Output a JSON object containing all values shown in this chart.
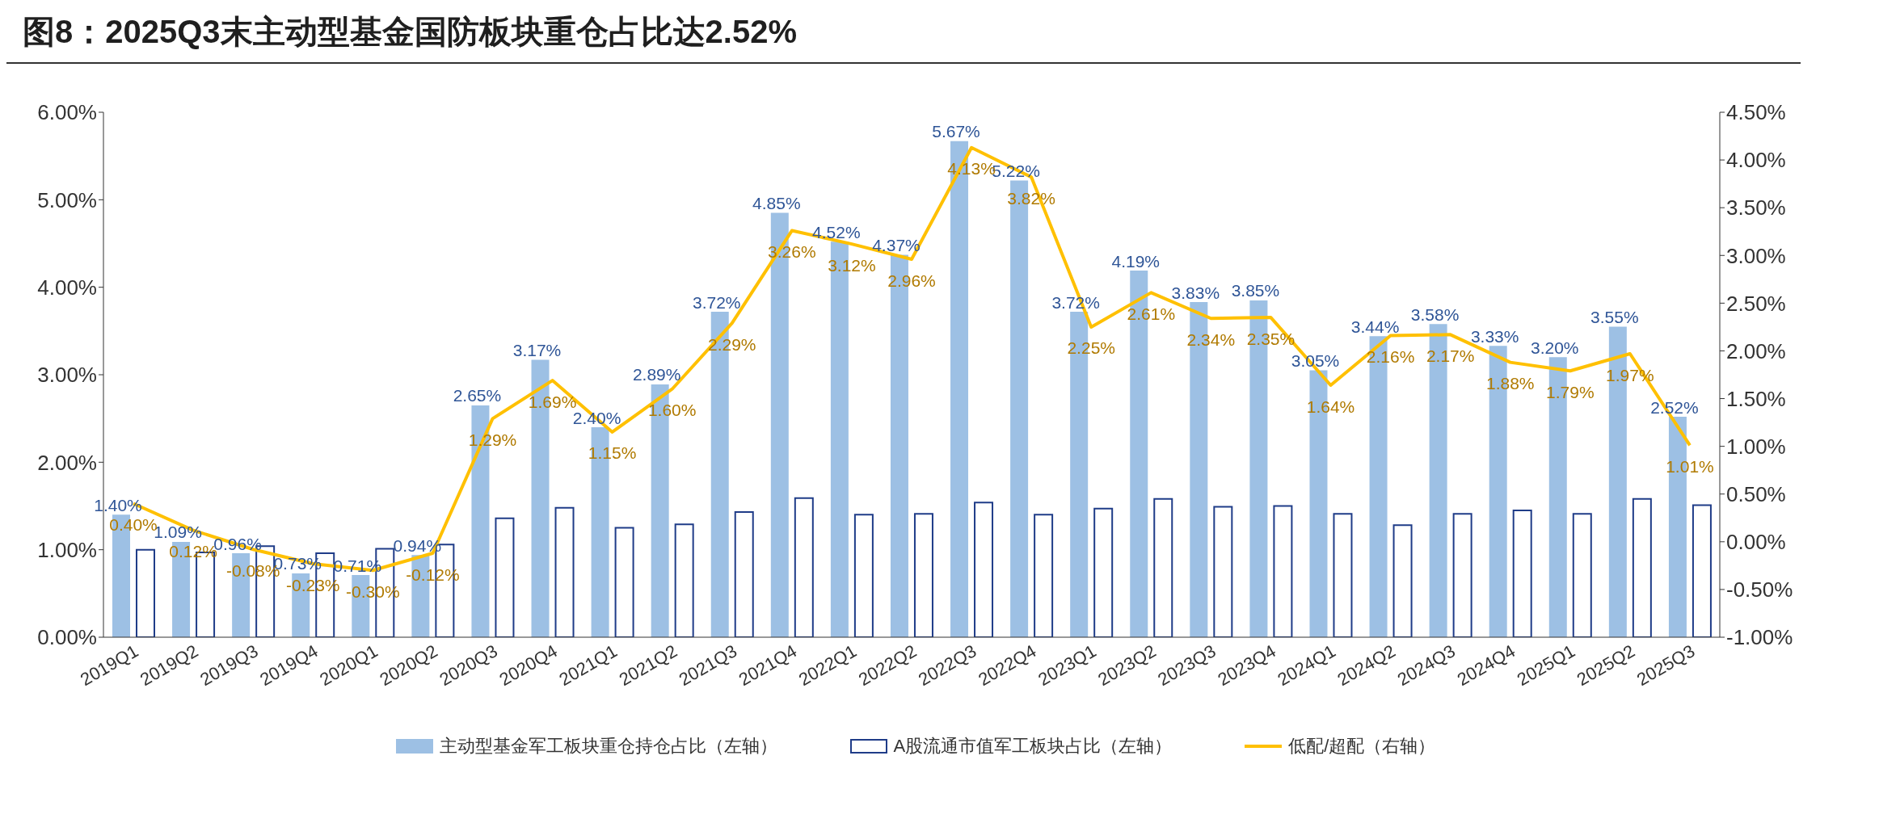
{
  "chart_data": {
    "type": "bar",
    "title": "图8：2025Q3末主动型基金国防板块重仓占比达2.52%",
    "categories": [
      "2019Q1",
      "2019Q2",
      "2019Q3",
      "2019Q4",
      "2020Q1",
      "2020Q2",
      "2020Q3",
      "2020Q4",
      "2021Q1",
      "2021Q2",
      "2021Q3",
      "2021Q4",
      "2022Q1",
      "2022Q2",
      "2022Q3",
      "2022Q4",
      "2023Q1",
      "2023Q2",
      "2023Q3",
      "2023Q4",
      "2024Q1",
      "2024Q2",
      "2024Q3",
      "2024Q4",
      "2025Q1",
      "2025Q2",
      "2025Q3"
    ],
    "series": [
      {
        "name": "主动型基金军工板块重仓持仓占比（左轴）",
        "color": "#9dc0e4",
        "values": [
          1.4,
          1.09,
          0.96,
          0.73,
          0.71,
          0.94,
          2.65,
          3.17,
          2.4,
          2.89,
          3.72,
          4.85,
          4.52,
          4.37,
          5.67,
          5.22,
          3.72,
          4.19,
          3.83,
          3.85,
          3.05,
          3.44,
          3.58,
          3.33,
          3.2,
          3.55,
          2.52
        ],
        "value_labels": [
          "1.40%",
          "1.09%",
          "0.96%",
          "0.73%",
          "0.71%",
          "0.94%",
          "2.65%",
          "3.17%",
          "2.40%",
          "2.89%",
          "3.72%",
          "4.85%",
          "4.52%",
          "4.37%",
          "5.67%",
          "5.22%",
          "3.72%",
          "4.19%",
          "3.83%",
          "3.85%",
          "3.05%",
          "3.44%",
          "3.58%",
          "3.33%",
          "3.20%",
          "3.55%",
          "2.52%"
        ]
      },
      {
        "name": "A股流通市值军工板块占比（左轴）",
        "color": "#ffffff",
        "values": [
          1.0,
          0.97,
          1.04,
          0.96,
          1.01,
          1.06,
          1.36,
          1.48,
          1.25,
          1.29,
          1.43,
          1.59,
          1.4,
          1.41,
          1.54,
          1.4,
          1.47,
          1.58,
          1.49,
          1.5,
          1.41,
          1.28,
          1.41,
          1.45,
          1.41,
          1.58,
          1.51
        ]
      },
      {
        "name": "低配/超配（右轴）",
        "type": "line",
        "axis": "y2",
        "color": "#ffc000",
        "values": [
          0.4,
          0.12,
          -0.08,
          -0.23,
          -0.3,
          -0.12,
          1.29,
          1.69,
          1.15,
          1.6,
          2.29,
          3.26,
          3.12,
          2.96,
          4.13,
          3.82,
          2.25,
          2.61,
          2.34,
          2.35,
          1.64,
          2.16,
          2.17,
          1.88,
          1.79,
          1.97,
          1.01
        ],
        "value_labels": [
          "0.40%",
          "0.12%",
          "-0.08%",
          "-0.23%",
          "-0.30%",
          "-0.12%",
          "1.29%",
          "1.69%",
          "1.15%",
          "1.60%",
          "2.29%",
          "3.26%",
          "3.12%",
          "2.96%",
          "4.13%",
          "3.82%",
          "2.25%",
          "2.61%",
          "2.34%",
          "2.35%",
          "1.64%",
          "2.16%",
          "2.17%",
          "1.88%",
          "1.79%",
          "1.97%",
          "1.01%"
        ]
      }
    ],
    "ylim": [
      0,
      6
    ],
    "yticks": [
      {
        "value": 0,
        "label": "0.00%"
      },
      {
        "value": 1,
        "label": "1.00%"
      },
      {
        "value": 2,
        "label": "2.00%"
      },
      {
        "value": 3,
        "label": "3.00%"
      },
      {
        "value": 4,
        "label": "4.00%"
      },
      {
        "value": 5,
        "label": "5.00%"
      },
      {
        "value": 6,
        "label": "6.00%"
      }
    ],
    "y2lim": [
      -1,
      4.5
    ],
    "y2ticks": [
      {
        "value": -1,
        "label": "-1.00%"
      },
      {
        "value": -0.5,
        "label": "-0.50%"
      },
      {
        "value": 0,
        "label": "0.00%"
      },
      {
        "value": 0.5,
        "label": "0.50%"
      },
      {
        "value": 1,
        "label": "1.00%"
      },
      {
        "value": 1.5,
        "label": "1.50%"
      },
      {
        "value": 2,
        "label": "2.00%"
      },
      {
        "value": 2.5,
        "label": "2.50%"
      },
      {
        "value": 3,
        "label": "3.00%"
      },
      {
        "value": 3.5,
        "label": "3.50%"
      },
      {
        "value": 4,
        "label": "4.00%"
      },
      {
        "value": 4.5,
        "label": "4.50%"
      }
    ],
    "marker": "none",
    "grid": false,
    "legend": "bottom"
  }
}
